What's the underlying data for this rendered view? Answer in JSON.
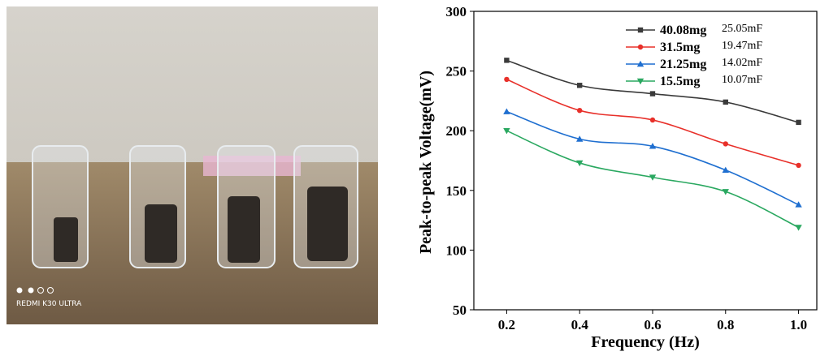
{
  "photo": {
    "watermark": "REDMI K30 ULTRA"
  },
  "chart_data": {
    "type": "line",
    "x_label": "Frequency (Hz)",
    "y_label": "Peak-to-peak Voltage(mV)",
    "x": [
      0.2,
      0.4,
      0.6,
      0.8,
      1.0
    ],
    "xlim": [
      0.11,
      1.05
    ],
    "xticks": [
      {
        "value": 0.2,
        "label": "0.2"
      },
      {
        "value": 0.4,
        "label": "0.4"
      },
      {
        "value": 0.6,
        "label": "0.6"
      },
      {
        "value": 0.8,
        "label": "0.8"
      },
      {
        "value": 1.0,
        "label": "1.0"
      }
    ],
    "ylim": [
      50,
      300
    ],
    "yticks": [
      50,
      100,
      150,
      200,
      250,
      300
    ],
    "series": [
      {
        "name": "40.08mg",
        "capacitance": "25.05mF",
        "color": "#3a3a3a",
        "marker": "square",
        "values": [
          259,
          238,
          231,
          224,
          207
        ]
      },
      {
        "name": "31.5mg",
        "capacitance": "19.47mF",
        "color": "#e8302a",
        "marker": "circle",
        "values": [
          243,
          217,
          209,
          189,
          171
        ]
      },
      {
        "name": "21.25mg",
        "capacitance": "14.02mF",
        "color": "#1f6fd0",
        "marker": "triangle-up",
        "values": [
          216,
          193,
          187,
          167,
          138
        ]
      },
      {
        "name": "15.5mg",
        "capacitance": "10.07mF",
        "color": "#2aa860",
        "marker": "triangle-down",
        "values": [
          200,
          173,
          161,
          149,
          119
        ]
      }
    ]
  }
}
